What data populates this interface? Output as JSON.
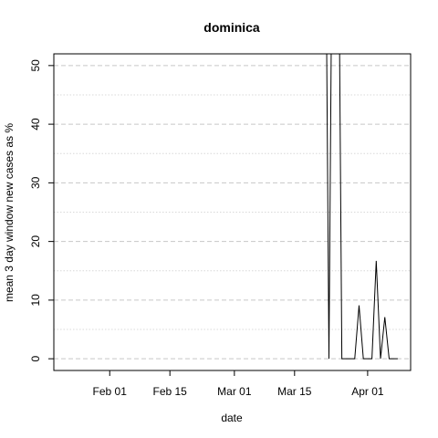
{
  "chart_data": {
    "type": "line",
    "title": "dominica",
    "xlabel": "date",
    "ylabel": "mean  3  day window new cases as %",
    "x_ticks": [
      "Feb 01",
      "Feb 15",
      "Mar 01",
      "Mar 15",
      "Apr 01"
    ],
    "x_tick_dates": [
      "2020-02-01",
      "2020-02-15",
      "2020-03-01",
      "2020-03-15",
      "2020-04-01"
    ],
    "x_range": [
      "2020-01-19",
      "2020-04-11"
    ],
    "y_ticks": [
      0,
      10,
      20,
      30,
      40,
      50
    ],
    "ylim": [
      -2,
      52
    ],
    "grid": true,
    "series": [
      {
        "color": "#000000",
        "x": [
          "2020-03-22",
          "2020-03-23",
          "2020-03-24",
          "2020-03-25",
          "2020-03-26",
          "2020-03-27",
          "2020-03-28",
          "2020-03-29",
          "2020-03-30",
          "2020-03-31",
          "2020-04-01",
          "2020-04-02",
          "2020-04-03",
          "2020-04-04",
          "2020-04-05",
          "2020-04-06",
          "2020-04-07",
          "2020-04-08"
        ],
        "values": [
          100,
          0,
          100,
          100,
          0,
          0,
          0,
          0,
          9.1,
          0,
          0,
          0,
          16.7,
          0,
          7.1,
          0,
          0,
          0
        ]
      }
    ]
  }
}
